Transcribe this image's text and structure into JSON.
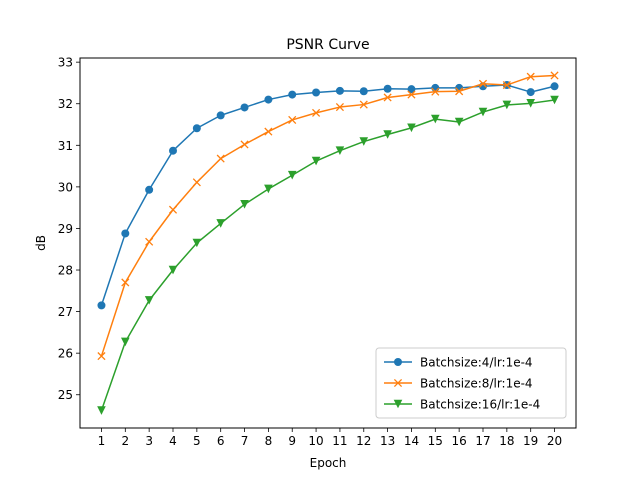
{
  "chart_data": {
    "type": "line",
    "title": "PSNR Curve",
    "xlabel": "Epoch",
    "ylabel": "dB",
    "x": [
      1,
      2,
      3,
      4,
      5,
      6,
      7,
      8,
      9,
      10,
      11,
      12,
      13,
      14,
      15,
      16,
      17,
      18,
      19,
      20
    ],
    "xlim": [
      0.1,
      20.9
    ],
    "ylim": [
      24.2,
      33.1
    ],
    "yticks": [
      25,
      26,
      27,
      28,
      29,
      30,
      31,
      32,
      33
    ],
    "grid": false,
    "legend_position": "lower-right",
    "series": [
      {
        "name": "Batchsize:4/lr:1e-4",
        "color": "#1f77b4",
        "marker": "circle",
        "values": [
          27.15,
          28.88,
          29.93,
          30.87,
          31.41,
          31.72,
          31.91,
          32.1,
          32.22,
          32.27,
          32.31,
          32.3,
          32.36,
          32.35,
          32.38,
          32.38,
          32.42,
          32.45,
          32.28,
          32.42
        ]
      },
      {
        "name": "Batchsize:8/lr:1e-4",
        "color": "#ff7f0e",
        "marker": "x",
        "values": [
          25.93,
          27.7,
          28.68,
          29.45,
          30.11,
          30.68,
          31.02,
          31.33,
          31.61,
          31.78,
          31.92,
          31.98,
          32.15,
          32.22,
          32.29,
          32.3,
          32.48,
          32.45,
          32.65,
          32.68
        ]
      },
      {
        "name": "Batchsize:16/lr:1e-4",
        "color": "#2ca02c",
        "marker": "triangle-down",
        "values": [
          24.62,
          26.27,
          27.27,
          28.0,
          28.65,
          29.12,
          29.58,
          29.95,
          30.28,
          30.62,
          30.87,
          31.09,
          31.26,
          31.42,
          31.63,
          31.56,
          31.8,
          31.97,
          32.01,
          32.09
        ]
      }
    ]
  }
}
